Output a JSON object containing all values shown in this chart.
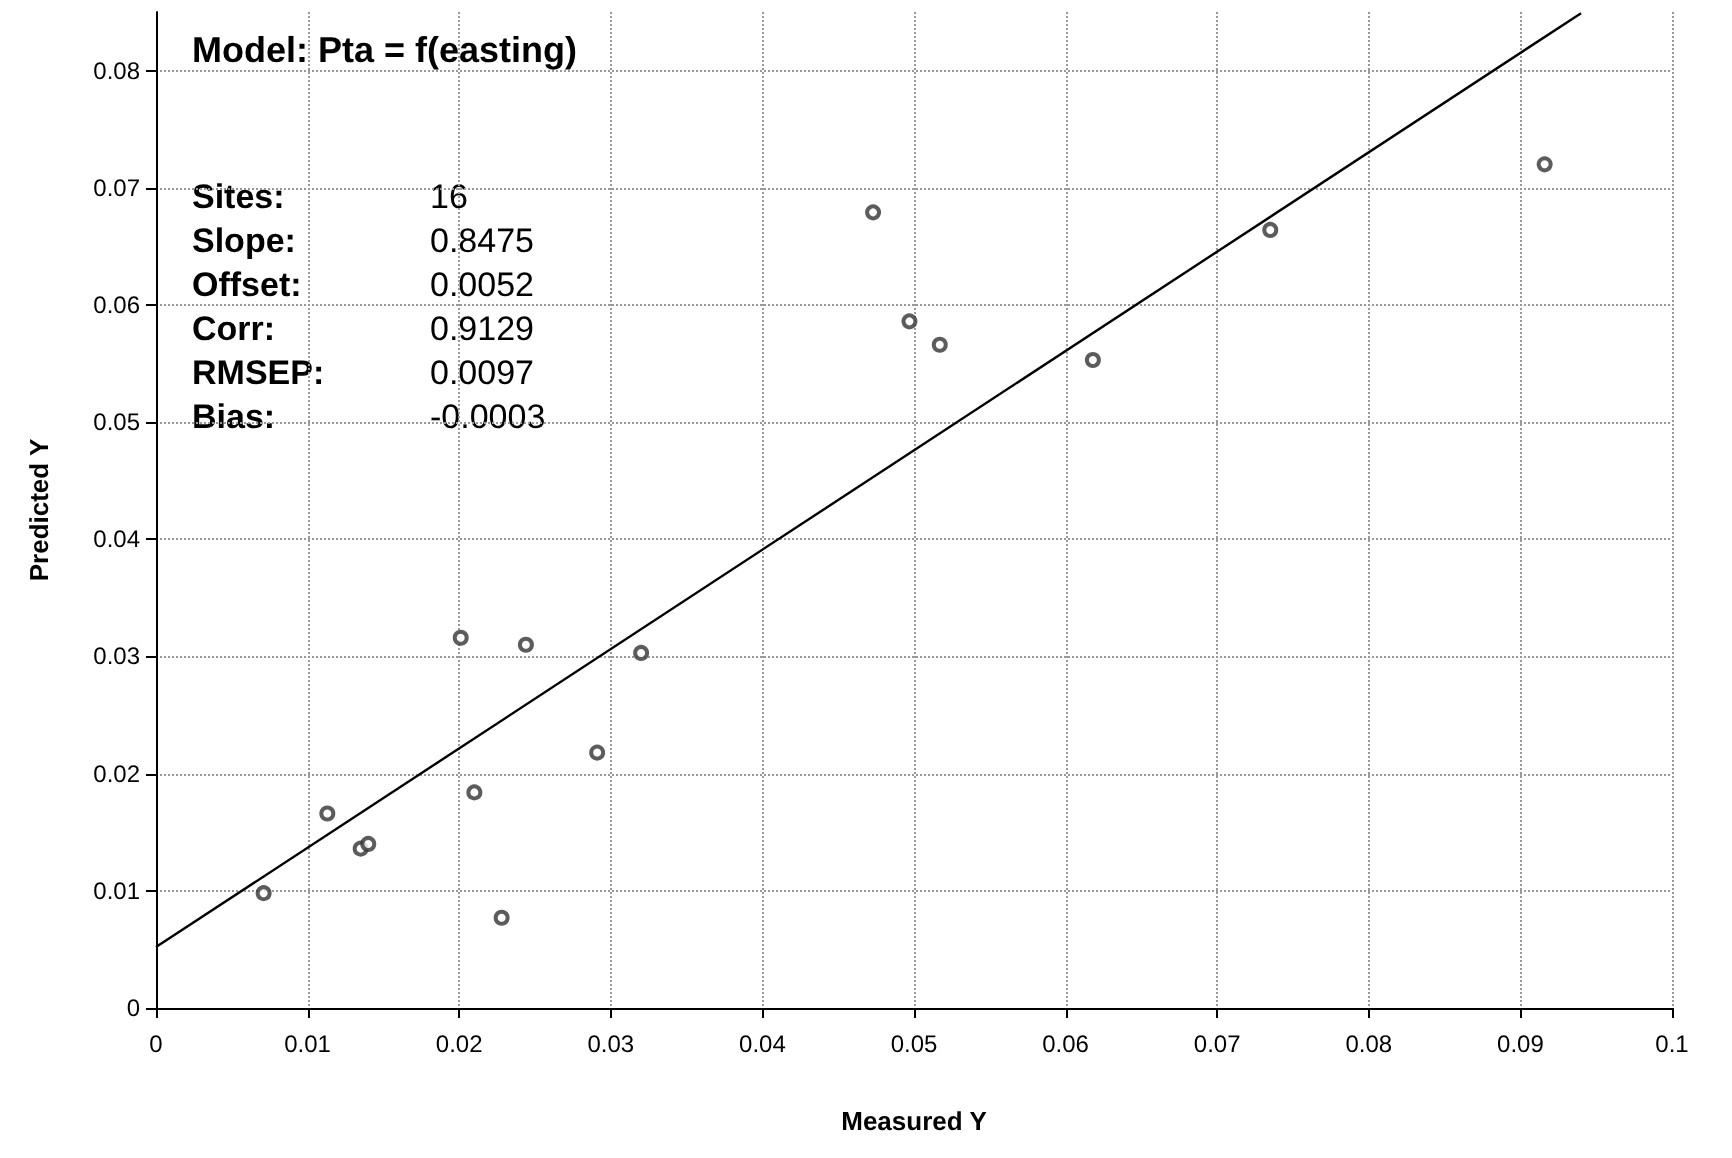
{
  "chart_data": {
    "type": "scatter",
    "title": "Model: Pta = f(easting)",
    "xlabel": "Measured Y",
    "ylabel": "Predicted Y",
    "annotations": [
      "Sites:",
      "16",
      "Slope:",
      "0.8475",
      "Offset:",
      "0.0052",
      "Corr:",
      "0.9129",
      "RMSEP:",
      "0.0097",
      "Bias:",
      "-0.0003"
    ],
    "series": [
      {
        "color": "#333333",
        "marker": "circle",
        "x": [
          0.0071,
          0.0113,
          0.0135,
          0.014,
          0.0201,
          0.021,
          0.0228,
          0.0244,
          0.0291,
          0.032,
          0.0473,
          0.0497,
          0.0517,
          0.0618,
          0.0735,
          0.0916
        ],
        "values": [
          0.0098,
          0.0166,
          0.0136,
          0.014,
          0.0316,
          0.0184,
          0.0077,
          0.031,
          0.0218,
          0.0303,
          0.0679,
          0.0586,
          0.0566,
          0.0553,
          0.0664,
          0.072
        ]
      },
      {
        "type": "line",
        "color": "#000000",
        "marker": "none",
        "line_style": "solid",
        "x": [
          0,
          0.094
        ],
        "values": [
          0.0052,
          0.0849
        ]
      }
    ],
    "xlim": [
      0,
      0.1
    ],
    "xticks": [
      0,
      0.01,
      0.02,
      0.03,
      0.04,
      0.05,
      0.06,
      0.07,
      0.08,
      0.09,
      0.1
    ],
    "ylim": [
      0,
      0.085
    ],
    "yticks": [
      0,
      0.01,
      0.02,
      0.03,
      0.04,
      0.05,
      0.06,
      0.07,
      0.08
    ],
    "grid": true
  }
}
